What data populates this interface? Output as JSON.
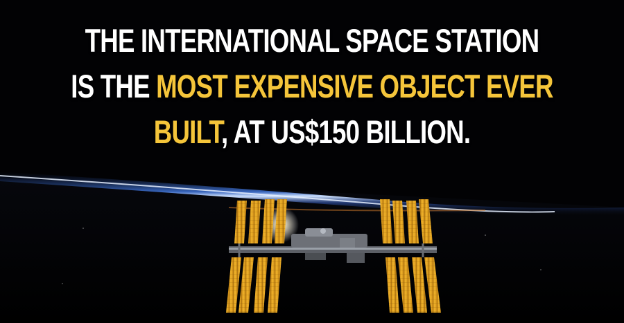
{
  "headline": {
    "line1": "THE INTERNATIONAL SPACE STATION",
    "line2_plain": "IS THE ",
    "line2_highlight": "MOST EXPENSIVE OBJECT EVER",
    "line3_highlight": "BUILT",
    "line3_plain": ", AT US$150 BILLION."
  },
  "colors": {
    "background": "#000000",
    "text": "#ffffff",
    "highlight": "#f5c53a",
    "solar_panel": "#e0a020",
    "horizon_glow": "#6fa8ff"
  },
  "image": {
    "subject": "iss-over-earth-horizon"
  }
}
